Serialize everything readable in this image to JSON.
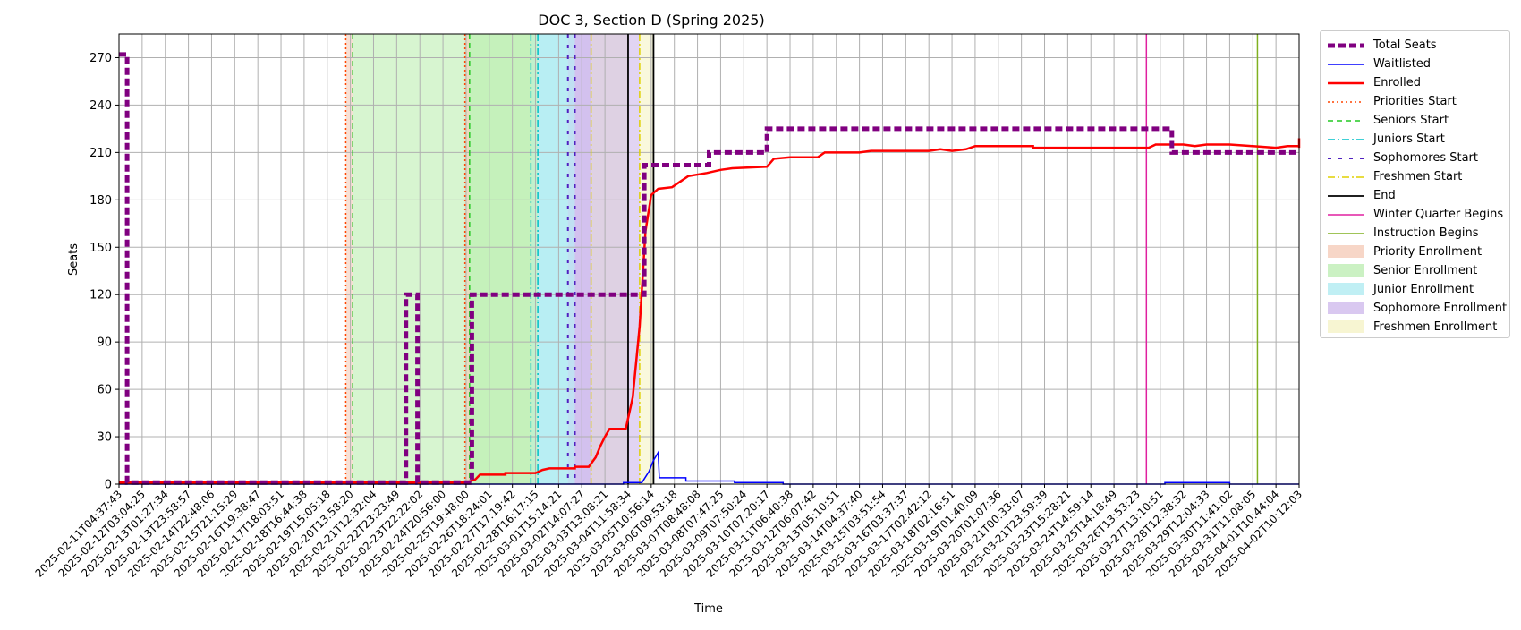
{
  "chart_data": {
    "type": "line",
    "title": "DOC 3, Section D (Spring 2025)",
    "xlabel": "Time",
    "ylabel": "Seats",
    "ylim": [
      0,
      285
    ],
    "yticks": [
      0,
      30,
      60,
      90,
      120,
      150,
      180,
      210,
      240,
      270
    ],
    "xlim": [
      "2025-02-11T04:37:43",
      "2025-04-02T10:12:03"
    ],
    "grid": true,
    "legend_position": "outside-top-right",
    "xtick_labels": [
      "2025-02-11T04:37:43",
      "2025-02-12T03:04:25",
      "2025-02-13T01:27:34",
      "2025-02-13T23:58:57",
      "2025-02-14T22:48:06",
      "2025-02-15T21:15:29",
      "2025-02-16T19:38:47",
      "2025-02-17T18:03:51",
      "2025-02-18T16:44:38",
      "2025-02-19T15:05:18",
      "2025-02-20T13:58:20",
      "2025-02-21T12:32:04",
      "2025-02-22T23:23:49",
      "2025-02-23T22:22:02",
      "2025-02-24T20:56:00",
      "2025-02-25T19:48:00",
      "2025-02-26T18:24:01",
      "2025-02-27T17:19:42",
      "2025-02-28T16:17:15",
      "2025-03-01T15:14:21",
      "2025-03-02T14:07:27",
      "2025-03-03T13:08:21",
      "2025-03-04T11:58:34",
      "2025-03-05T10:56:14",
      "2025-03-06T09:53:18",
      "2025-03-07T08:48:08",
      "2025-03-08T07:47:25",
      "2025-03-09T07:50:24",
      "2025-03-10T07:20:17",
      "2025-03-11T06:40:38",
      "2025-03-12T06:07:42",
      "2025-03-13T05:10:51",
      "2025-03-14T04:37:40",
      "2025-03-15T03:51:54",
      "2025-03-16T03:37:37",
      "2025-03-17T02:42:12",
      "2025-03-18T02:16:51",
      "2025-03-19T01:40:09",
      "2025-03-20T01:07:36",
      "2025-03-21T00:33:07",
      "2025-03-21T23:59:39",
      "2025-03-23T15:28:21",
      "2025-03-24T14:59:14",
      "2025-03-25T14:18:49",
      "2025-03-26T13:53:23",
      "2025-03-27T13:10:51",
      "2025-03-28T12:38:32",
      "2025-03-29T12:04:33",
      "2025-03-30T11:41:02",
      "2025-03-31T11:08:05",
      "2025-04-01T10:44:04",
      "2025-04-02T10:12:03"
    ],
    "series": [
      {
        "name": "Total Seats",
        "color": "#800080",
        "style": "dashed-thick",
        "points": [
          [
            0,
            272
          ],
          [
            0.35,
            272
          ],
          [
            0.35,
            1
          ],
          [
            12.4,
            1
          ],
          [
            12.4,
            120
          ],
          [
            12.9,
            120
          ],
          [
            12.9,
            1
          ],
          [
            15.25,
            1
          ],
          [
            15.25,
            120
          ],
          [
            22.7,
            120
          ],
          [
            22.7,
            202
          ],
          [
            25.5,
            202
          ],
          [
            25.5,
            210
          ],
          [
            28.0,
            210
          ],
          [
            28.0,
            225
          ],
          [
            45.5,
            225
          ],
          [
            45.5,
            210
          ],
          [
            51,
            210
          ]
        ]
      },
      {
        "name": "Waitlisted",
        "color": "#0000ff",
        "style": "solid-thin",
        "points": [
          [
            0,
            0
          ],
          [
            21.8,
            0
          ],
          [
            21.8,
            1
          ],
          [
            22.6,
            1
          ],
          [
            22.9,
            8
          ],
          [
            23.1,
            15
          ],
          [
            23.3,
            20
          ],
          [
            23.35,
            4
          ],
          [
            24.5,
            4
          ],
          [
            24.5,
            2
          ],
          [
            26.6,
            2
          ],
          [
            26.6,
            1
          ],
          [
            28.7,
            1
          ],
          [
            28.7,
            0
          ],
          [
            45.2,
            0
          ],
          [
            45.2,
            1
          ],
          [
            48.0,
            1
          ],
          [
            48.0,
            0
          ],
          [
            51,
            0
          ]
        ]
      },
      {
        "name": "Enrolled",
        "color": "#ff0000",
        "style": "solid",
        "points": [
          [
            0,
            1
          ],
          [
            15.0,
            1
          ],
          [
            15.4,
            3
          ],
          [
            15.6,
            6
          ],
          [
            16.7,
            6
          ],
          [
            16.7,
            7
          ],
          [
            18.0,
            7
          ],
          [
            18.3,
            9
          ],
          [
            18.6,
            10
          ],
          [
            19.7,
            10
          ],
          [
            19.7,
            11
          ],
          [
            20.3,
            11
          ],
          [
            20.6,
            17
          ],
          [
            20.8,
            24
          ],
          [
            21.0,
            30
          ],
          [
            21.2,
            35
          ],
          [
            21.9,
            35
          ],
          [
            22.2,
            55
          ],
          [
            22.5,
            100
          ],
          [
            22.75,
            160
          ],
          [
            23.0,
            183
          ],
          [
            23.3,
            187
          ],
          [
            23.9,
            188
          ],
          [
            24.6,
            195
          ],
          [
            25.4,
            197
          ],
          [
            26.0,
            199
          ],
          [
            26.5,
            200
          ],
          [
            28.0,
            201
          ],
          [
            28.3,
            206
          ],
          [
            29.0,
            207
          ],
          [
            30.2,
            207
          ],
          [
            30.5,
            210
          ],
          [
            32.0,
            210
          ],
          [
            32.5,
            211
          ],
          [
            35.0,
            211
          ],
          [
            35.5,
            212
          ],
          [
            36.0,
            211
          ],
          [
            36.6,
            212
          ],
          [
            37.0,
            214
          ],
          [
            39.5,
            214
          ],
          [
            39.5,
            213
          ],
          [
            42.0,
            213
          ],
          [
            44.5,
            213
          ],
          [
            44.8,
            215
          ],
          [
            46.0,
            215
          ],
          [
            46.5,
            214
          ],
          [
            47.0,
            215
          ],
          [
            48.0,
            215
          ],
          [
            49.0,
            214
          ],
          [
            50.0,
            213
          ],
          [
            50.5,
            214
          ],
          [
            55.0,
            214
          ],
          [
            55.5,
            213
          ],
          [
            56.0,
            214
          ],
          [
            57.5,
            215
          ],
          [
            58.5,
            217
          ],
          [
            59.0,
            218
          ],
          [
            60.0,
            218
          ],
          [
            60.5,
            219
          ],
          [
            61.5,
            219
          ],
          [
            62.0,
            218
          ],
          [
            62.5,
            219
          ],
          [
            63.5,
            219
          ]
        ],
        "note_scale": "x values for Enrolled beyond index 51 are clamped"
      }
    ],
    "phases": [
      {
        "name": "Priority Enrollment",
        "color": "#f4c6b0",
        "start": 10.1,
        "end": 10.3,
        "start_line": "Priorities Start"
      },
      {
        "name": "Senior Enrollment",
        "color": "#b6ecaa",
        "start": 10.3,
        "end": 17.8,
        "start_line": "Seniors Start"
      },
      {
        "name": "Junior Enrollment",
        "color": "#a6e9f0",
        "start": 17.8,
        "end": 18.3,
        "start_line": "Juniors Start"
      },
      {
        "name": "Sophomore Enrollment",
        "color": "#c9b1ea",
        "start": 18.3,
        "end": 19.4,
        "start_line": "Sophomores Start"
      },
      {
        "name": "Freshmen Enrollment",
        "color": "#f4f2bf",
        "start": 19.4,
        "end": 20.4,
        "start_line": "Freshmen Start"
      }
    ],
    "windows": [
      {
        "priority": 9.8,
        "senior": 10.1,
        "junior": 17.8,
        "sophomore": 19.4,
        "freshmen": 20.4,
        "end": 22.0
      },
      {
        "priority": 14.95,
        "senior": 15.15,
        "junior": 18.1,
        "sophomore": 19.7,
        "freshmen": 22.5,
        "end": 23.1
      }
    ],
    "events": [
      {
        "name": "Winter Quarter Begins",
        "color": "#e020a0",
        "x": 44.4
      },
      {
        "name": "Instruction Begins",
        "color": "#80b020",
        "x": 49.2
      }
    ],
    "legend": [
      {
        "label": "Total Seats",
        "kind": "line",
        "color": "#800080",
        "dash": "8,4",
        "width": 5
      },
      {
        "label": "Waitlisted",
        "kind": "line",
        "color": "#0000ff",
        "dash": "",
        "width": 1.5
      },
      {
        "label": "Enrolled",
        "kind": "line",
        "color": "#ff0000",
        "dash": "",
        "width": 2.5
      },
      {
        "label": "Priorities Start",
        "kind": "line",
        "color": "#ff4500",
        "dash": "2,3",
        "width": 1.5
      },
      {
        "label": "Seniors Start",
        "kind": "line",
        "color": "#22c822",
        "dash": "6,4",
        "width": 1.5
      },
      {
        "label": "Juniors Start",
        "kind": "line",
        "color": "#00c0c8",
        "dash": "8,3,2,3",
        "width": 1.5
      },
      {
        "label": "Sophomores Start",
        "kind": "line",
        "color": "#5020c0",
        "dash": "4,8",
        "width": 2
      },
      {
        "label": "Freshmen Start",
        "kind": "line",
        "color": "#e0d000",
        "dash": "8,3,2,3",
        "width": 1.5
      },
      {
        "label": "End",
        "kind": "line",
        "color": "#000000",
        "dash": "",
        "width": 1.8
      },
      {
        "label": "Winter Quarter Begins",
        "kind": "line",
        "color": "#e020a0",
        "dash": "",
        "width": 1.5
      },
      {
        "label": "Instruction Begins",
        "kind": "line",
        "color": "#80b020",
        "dash": "",
        "width": 1.5
      },
      {
        "label": "Priority Enrollment",
        "kind": "patch",
        "color": "#f4c6b0"
      },
      {
        "label": "Senior Enrollment",
        "kind": "patch",
        "color": "#b6ecaa"
      },
      {
        "label": "Junior Enrollment",
        "kind": "patch",
        "color": "#a6e9f0"
      },
      {
        "label": "Sophomore Enrollment",
        "kind": "patch",
        "color": "#c9b1ea"
      },
      {
        "label": "Freshmen Enrollment",
        "kind": "patch",
        "color": "#f4f2bf"
      }
    ]
  }
}
